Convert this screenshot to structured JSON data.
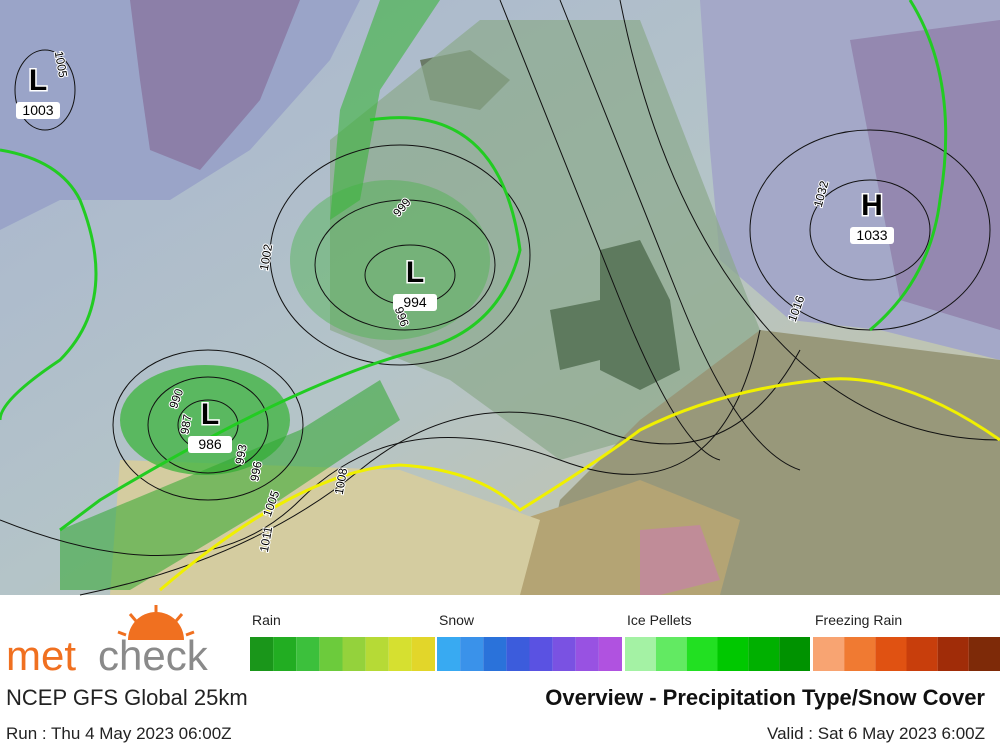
{
  "map": {
    "centers": [
      {
        "symbol": "L",
        "value": "1003"
      },
      {
        "symbol": "L",
        "value": "994"
      },
      {
        "symbol": "L",
        "value": "986"
      },
      {
        "symbol": "H",
        "value": "1033"
      }
    ],
    "isobar_labels": [
      "1005",
      "999",
      "1002",
      "996",
      "990",
      "987",
      "993",
      "996",
      "1005",
      "1008",
      "1011",
      "1032",
      "1016"
    ]
  },
  "legend": [
    {
      "label": "Rain",
      "colors": [
        "#1a961a",
        "#22ad22",
        "#3cc03c",
        "#6ccb3c",
        "#94d23c",
        "#b6da36",
        "#d6e030",
        "#e2d62a"
      ]
    },
    {
      "label": "Snow",
      "colors": [
        "#38aaf2",
        "#3a92ea",
        "#2a72da",
        "#3c5cdc",
        "#5a52e2",
        "#7a52e2",
        "#9852e2",
        "#b052e0"
      ]
    },
    {
      "label": "Ice Pellets",
      "colors": [
        "#a4f2a4",
        "#62ea62",
        "#22e022",
        "#00c800",
        "#00b000",
        "#009200"
      ]
    },
    {
      "label": "Freezing Rain",
      "colors": [
        "#f8a472",
        "#f07a32",
        "#e05212",
        "#c83e0c",
        "#a02c08",
        "#7e2a08"
      ]
    }
  ],
  "footer": {
    "logo_left": "met",
    "logo_right": "check",
    "model": "NCEP GFS Global 25km",
    "title": "Overview - Precipitation Type/Snow Cover",
    "run": "Run : Thu 4 May 2023 06:00Z",
    "valid": "Valid : Sat 6 May 2023 6:00Z"
  }
}
